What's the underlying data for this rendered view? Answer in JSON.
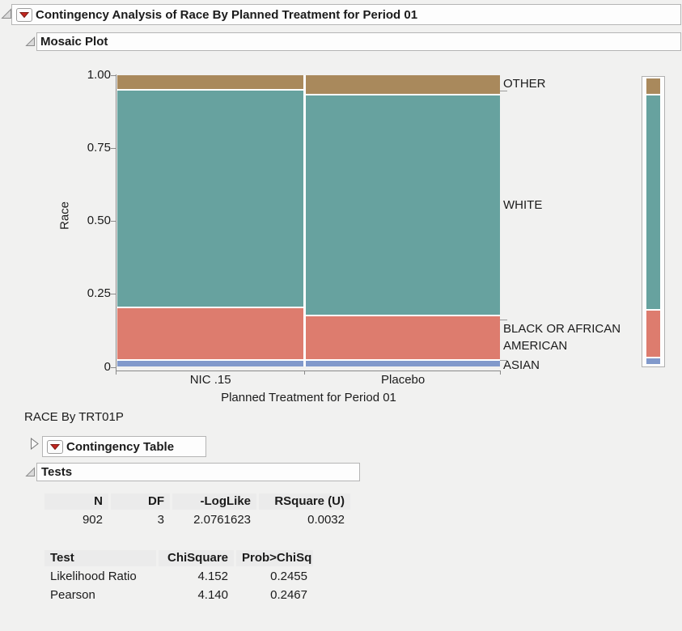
{
  "title": "Contingency Analysis of Race By Planned Treatment for Period 01",
  "headers": {
    "mosaic_plot": "Mosaic Plot",
    "contingency_table": "Contingency Table",
    "tests": "Tests"
  },
  "subtitle": "RACE By TRT01P",
  "chart_data": {
    "type": "mosaic",
    "title": "Mosaic Plot",
    "xlabel": "Planned Treatment for Period 01",
    "ylabel": "Race",
    "ylim": [
      0,
      1
    ],
    "y_ticks": [
      "1.00",
      "0.75",
      "0.50",
      "0.25",
      "0"
    ],
    "x_categories": [
      "NIC .15",
      "Placebo"
    ],
    "y_categories_top_to_bottom": [
      "OTHER",
      "WHITE",
      "BLACK OR AFRICAN AMERICAN",
      "ASIAN"
    ],
    "column_width_share": [
      0.49,
      0.51
    ],
    "series": [
      {
        "name": "NIC .15",
        "values": {
          "OTHER": 0.048,
          "WHITE": 0.755,
          "BLACK OR AFRICAN AMERICAN": 0.176,
          "ASIAN": 0.021
        }
      },
      {
        "name": "Placebo",
        "values": {
          "OTHER": 0.065,
          "WHITE": 0.766,
          "BLACK OR AFRICAN AMERICAN": 0.15,
          "ASIAN": 0.019
        }
      }
    ],
    "overall_share": {
      "OTHER": 0.056,
      "WHITE": 0.76,
      "BLACK OR AFRICAN AMERICAN": 0.164,
      "ASIAN": 0.02
    },
    "colors": {
      "OTHER": "#a9895c",
      "WHITE": "#67a29f",
      "BLACK OR AFRICAN AMERICAN": "#dd7c6e",
      "ASIAN": "#8199cb"
    },
    "legend_position": "right"
  },
  "cat_labels": {
    "other": "OTHER",
    "white": "WHITE",
    "black": "BLACK OR AFRICAN AMERICAN",
    "asian": "ASIAN"
  },
  "tables": {
    "fit": {
      "headers": [
        "N",
        "DF",
        "-LogLike",
        "RSquare (U)"
      ],
      "rows": [
        [
          "902",
          "3",
          "2.0761623",
          "0.0032"
        ]
      ]
    },
    "tests": {
      "headers": [
        "Test",
        "ChiSquare",
        "Prob>ChiSq"
      ],
      "rows": [
        [
          "Likelihood Ratio",
          "4.152",
          "0.2455"
        ],
        [
          "Pearson",
          "4.140",
          "0.2467"
        ]
      ]
    }
  }
}
